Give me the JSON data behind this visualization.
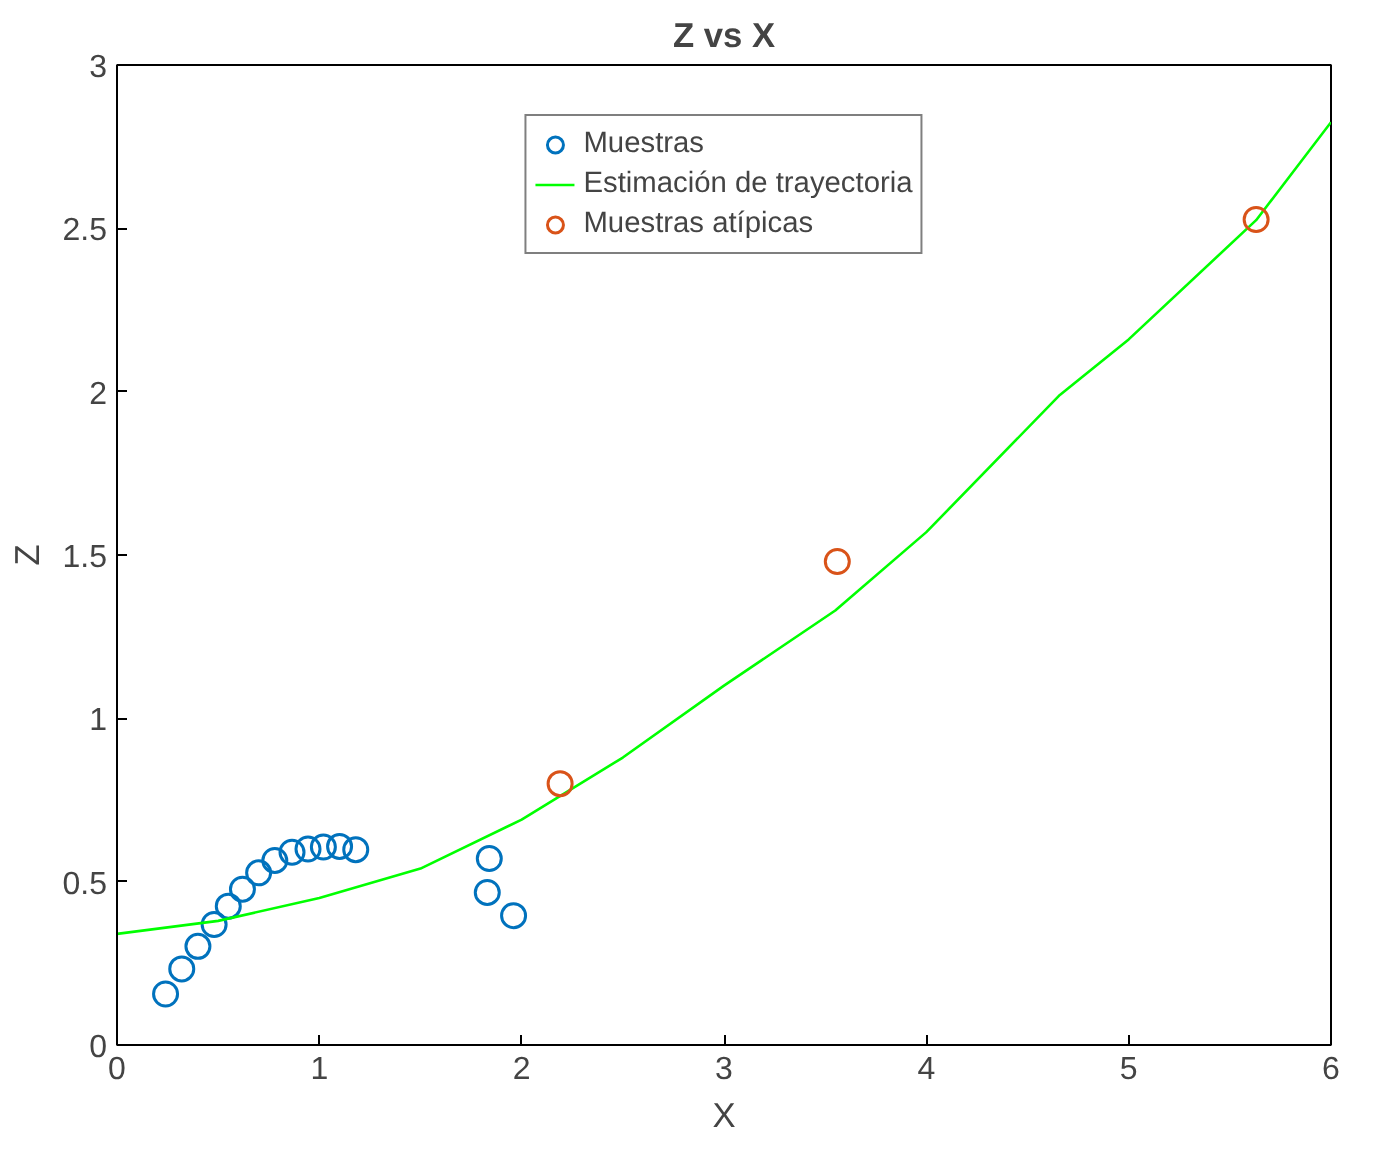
{
  "chart_data": {
    "type": "scatter",
    "title": "Z vs X",
    "xlabel": "X",
    "ylabel": "Z",
    "xlim": [
      0,
      6
    ],
    "ylim": [
      0,
      3
    ],
    "xticks": [
      0,
      1,
      2,
      3,
      4,
      5,
      6
    ],
    "yticks": [
      0,
      0.5,
      1,
      1.5,
      2,
      2.5,
      3
    ],
    "grid": false,
    "legend": "top",
    "series": [
      {
        "name": "Muestras",
        "marker": "circle",
        "color": "#0072bd",
        "x": [
          0.24,
          0.32,
          0.4,
          0.48,
          0.55,
          0.62,
          0.7,
          0.78,
          0.865,
          0.944,
          1.02,
          1.1,
          1.18,
          1.84,
          1.83,
          1.96
        ],
        "values": [
          0.156,
          0.233,
          0.302,
          0.369,
          0.425,
          0.477,
          0.527,
          0.565,
          0.59,
          0.6,
          0.606,
          0.608,
          0.598,
          0.571,
          0.467,
          0.396
        ]
      },
      {
        "name": "Estimación de trayectoria",
        "type": "line",
        "marker": "none",
        "color": "#00ff00",
        "x": [
          0,
          0.5,
          1,
          1.5,
          2,
          2.5,
          3,
          3.55,
          4,
          4.66,
          5,
          5.63,
          6
        ],
        "values": [
          0.34,
          0.38,
          0.45,
          0.54,
          0.69,
          0.88,
          1.1,
          1.33,
          1.57,
          1.99,
          2.16,
          2.525,
          2.825
        ]
      },
      {
        "name": "Muestras atípicas",
        "marker": "circle",
        "color": "#d95319",
        "x": [
          2.19,
          3.56,
          5.63
        ],
        "values": [
          0.8,
          1.48,
          2.527
        ]
      }
    ]
  }
}
